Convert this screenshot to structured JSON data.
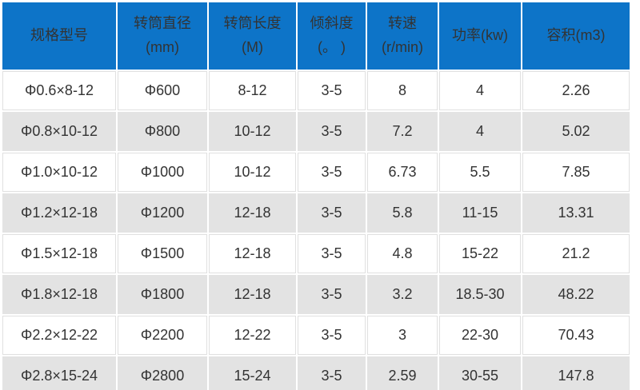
{
  "table": {
    "columns": [
      {
        "label": "规格型号",
        "sublabel": ""
      },
      {
        "label": "转筒直径",
        "sublabel": "(mm)"
      },
      {
        "label": "转筒长度",
        "sublabel": "(M)"
      },
      {
        "label": "倾斜度",
        "sublabel": "(。 )"
      },
      {
        "label": "转速",
        "sublabel": "(r/min)"
      },
      {
        "label": "功率(kw)",
        "sublabel": ""
      },
      {
        "label": "容积(m3)",
        "sublabel": ""
      }
    ],
    "rows": [
      [
        "Φ0.6×8-12",
        "Φ600",
        "8-12",
        "3-5",
        "8",
        "4",
        "2.26"
      ],
      [
        "Φ0.8×10-12",
        "Φ800",
        "10-12",
        "3-5",
        "7.2",
        "4",
        "5.02"
      ],
      [
        "Φ1.0×10-12",
        "Φ1000",
        "10-12",
        "3-5",
        "6.73",
        "5.5",
        "7.85"
      ],
      [
        "Φ1.2×12-18",
        "Φ1200",
        "12-18",
        "3-5",
        "5.8",
        "11-15",
        "13.31"
      ],
      [
        "Φ1.5×12-18",
        "Φ1500",
        "12-18",
        "3-5",
        "4.8",
        "15-22",
        "21.2"
      ],
      [
        "Φ1.8×12-18",
        "Φ1800",
        "12-18",
        "3-5",
        "3.2",
        "18.5-30",
        "48.22"
      ],
      [
        "Φ2.2×12-22",
        "Φ2200",
        "12-22",
        "3-5",
        "3",
        "22-30",
        "70.43"
      ],
      [
        "Φ2.8×15-24",
        "Φ2800",
        "15-24",
        "3-5",
        "2.59",
        "30-55",
        "147.8"
      ]
    ]
  },
  "colors": {
    "header_bg": "#0d74c8",
    "header_text": "#333333",
    "row_bg": "#ffffff",
    "row_alt_bg": "#e3e3e3",
    "cell_border": "#e0e0e0",
    "body_text": "#333333",
    "bottom_border": "#0d74c8"
  }
}
